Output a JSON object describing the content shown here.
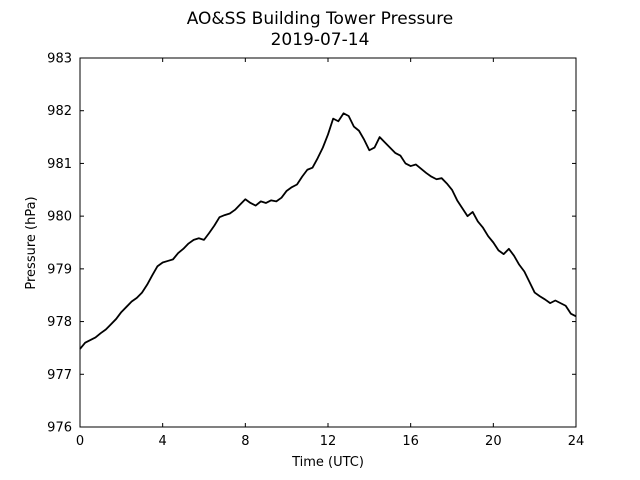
{
  "chart_data": {
    "type": "line",
    "title": "AO&SS Building Tower Pressure",
    "subtitle": "2019-07-14",
    "xlabel": "Time (UTC)",
    "ylabel": "Pressure (hPa)",
    "xlim": [
      0,
      24
    ],
    "ylim": [
      976,
      983
    ],
    "xticks": [
      "0",
      "4",
      "8",
      "12",
      "16",
      "20",
      "24"
    ],
    "yticks": [
      "976",
      "977",
      "978",
      "979",
      "980",
      "981",
      "982",
      "983"
    ],
    "grid": false,
    "legend": "none",
    "series": [
      {
        "color": "#000000",
        "x": [
          0,
          0.25,
          0.5,
          0.75,
          1.0,
          1.25,
          1.5,
          1.75,
          2.0,
          2.25,
          2.5,
          2.75,
          3.0,
          3.25,
          3.5,
          3.75,
          4.0,
          4.25,
          4.5,
          4.75,
          5.0,
          5.25,
          5.5,
          5.75,
          6.0,
          6.25,
          6.5,
          6.75,
          7.0,
          7.25,
          7.5,
          7.75,
          8.0,
          8.25,
          8.5,
          8.75,
          9.0,
          9.25,
          9.5,
          9.75,
          10.0,
          10.25,
          10.5,
          10.75,
          11.0,
          11.25,
          11.5,
          11.75,
          12.0,
          12.25,
          12.5,
          12.75,
          13.0,
          13.25,
          13.5,
          13.75,
          14.0,
          14.25,
          14.5,
          14.75,
          15.0,
          15.25,
          15.5,
          15.75,
          16.0,
          16.25,
          16.5,
          16.75,
          17.0,
          17.25,
          17.5,
          17.75,
          18.0,
          18.25,
          18.5,
          18.75,
          19.0,
          19.25,
          19.5,
          19.75,
          20.0,
          20.25,
          20.5,
          20.75,
          21.0,
          21.25,
          21.5,
          21.75,
          22.0,
          22.25,
          22.5,
          22.75,
          23.0,
          23.25,
          23.5,
          23.75,
          24.0
        ],
        "values": [
          977.48,
          977.6,
          977.65,
          977.7,
          977.78,
          977.85,
          977.95,
          978.05,
          978.18,
          978.28,
          978.38,
          978.45,
          978.55,
          978.7,
          978.88,
          979.05,
          979.12,
          979.15,
          979.18,
          979.3,
          979.38,
          979.48,
          979.55,
          979.58,
          979.55,
          979.68,
          979.82,
          979.98,
          980.02,
          980.05,
          980.12,
          980.22,
          980.32,
          980.25,
          980.2,
          980.28,
          980.25,
          980.3,
          980.28,
          980.35,
          980.48,
          980.55,
          980.6,
          980.75,
          980.88,
          980.92,
          981.1,
          981.3,
          981.55,
          981.85,
          981.8,
          981.95,
          981.9,
          981.7,
          981.62,
          981.45,
          981.25,
          981.3,
          981.5,
          981.4,
          981.3,
          981.2,
          981.15,
          981.0,
          980.95,
          980.98,
          980.9,
          980.82,
          980.75,
          980.7,
          980.72,
          980.62,
          980.5,
          980.3,
          980.15,
          980.0,
          980.08,
          979.9,
          979.78,
          979.62,
          979.5,
          979.35,
          979.28,
          979.38,
          979.25,
          979.08,
          978.95,
          978.75,
          978.55,
          978.48,
          978.42,
          978.35,
          978.4,
          978.35,
          978.3,
          978.15,
          978.1
        ]
      }
    ]
  }
}
